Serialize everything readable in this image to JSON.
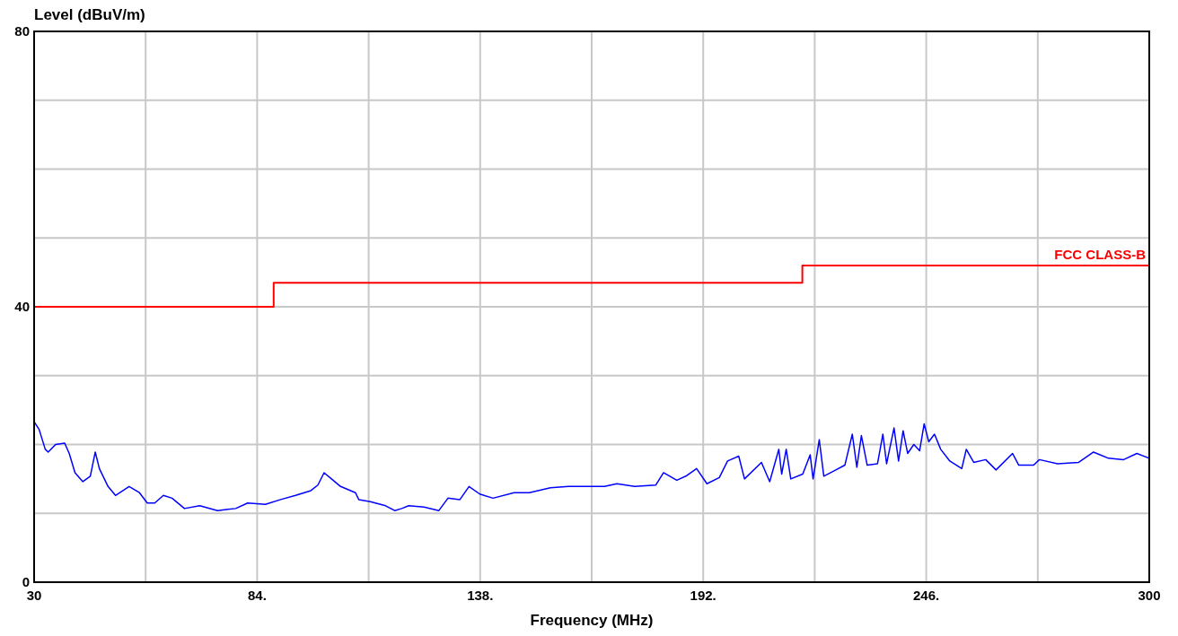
{
  "chart_data": {
    "type": "line",
    "xlabel": "Frequency (MHz)",
    "ylabel": "Level (dBuV/m)",
    "xlim": [
      30,
      300
    ],
    "ylim": [
      0,
      80
    ],
    "xticks": [
      30,
      {
        "value": 57,
        "label": null
      },
      {
        "value": 84,
        "label": "84."
      },
      {
        "value": 111,
        "label": null
      },
      {
        "value": 138,
        "label": "138."
      },
      {
        "value": 165,
        "label": null
      },
      {
        "value": 192,
        "label": "192."
      },
      {
        "value": 219,
        "label": null
      },
      {
        "value": 246,
        "label": "246."
      },
      {
        "value": 273,
        "label": null
      },
      300
    ],
    "yticks": [
      0,
      {
        "value": 10,
        "label": null
      },
      {
        "value": 20,
        "label": null
      },
      {
        "value": 30,
        "label": null
      },
      40,
      {
        "value": 50,
        "label": null
      },
      {
        "value": 60,
        "label": null
      },
      {
        "value": 70,
        "label": null
      },
      80
    ],
    "grid": true,
    "series": [
      {
        "color": "#0000ff",
        "x": [
          30,
          31.2,
          32.7,
          33.4,
          35.2,
          37.4,
          38.5,
          39.9,
          41.8,
          43.6,
          44.8,
          45.8,
          47.9,
          49.7,
          53,
          55.5,
          57.4,
          59.2,
          61.3,
          63.4,
          66.4,
          70.1,
          74.4,
          78.8,
          81.7,
          86,
          89.7,
          93.3,
          97,
          98.7,
          100.2,
          102,
          104.2,
          107.8,
          108.6,
          111.4,
          115.1,
          117.3,
          119,
          120.7,
          124.4,
          128,
          130.2,
          133.1,
          135.3,
          137.9,
          141.1,
          146.2,
          149.9,
          155,
          159.4,
          164.5,
          168.1,
          171.1,
          175.4,
          180.5,
          182.4,
          185.6,
          187.8,
          190.4,
          192.9,
          195.9,
          197.9,
          200.6,
          202,
          206.1,
          208.1,
          210.3,
          211,
          212.1,
          213.2,
          216.1,
          217.9,
          218.6,
          220.1,
          221.2,
          224.1,
          226.3,
          228.1,
          229.2,
          230.3,
          231.7,
          234.2,
          235.5,
          236.4,
          238.2,
          239.3,
          240.4,
          241.5,
          243,
          244.4,
          245.5,
          246.6,
          248,
          249.5,
          251.7,
          254.6,
          255.7,
          257.5,
          260.4,
          262.9,
          266.9,
          268.4,
          272,
          273.4,
          277.8,
          282.9,
          286.5,
          290.1,
          293.8,
          297,
          300
        ],
        "values": [
          23.3,
          22.2,
          19.3,
          18.9,
          20,
          20.2,
          18.7,
          15.9,
          14.6,
          15.4,
          18.9,
          16.5,
          13.9,
          12.6,
          13.9,
          13,
          11.5,
          11.5,
          12.6,
          12.2,
          10.7,
          11.1,
          10.4,
          10.7,
          11.5,
          11.3,
          12,
          12.6,
          13.3,
          14.1,
          15.9,
          15,
          13.9,
          13,
          12,
          11.7,
          11.1,
          10.4,
          10.7,
          11.1,
          10.9,
          10.4,
          12.2,
          12,
          13.9,
          12.8,
          12.2,
          13,
          13,
          13.7,
          13.9,
          13.9,
          13.9,
          14.3,
          13.9,
          14.1,
          15.9,
          14.8,
          15.4,
          16.5,
          14.3,
          15.2,
          17.6,
          18.3,
          15,
          17.4,
          14.6,
          19.3,
          15.7,
          19.3,
          15,
          15.7,
          18.5,
          15,
          20.7,
          15.4,
          16.3,
          17,
          21.5,
          16.7,
          21.3,
          17,
          17.2,
          21.5,
          17.2,
          22.4,
          17.6,
          22,
          18.7,
          20,
          19.1,
          23,
          20.4,
          21.5,
          19.3,
          17.6,
          16.5,
          19.3,
          17.4,
          17.8,
          16.3,
          18.7,
          17,
          17,
          17.8,
          17.2,
          17.4,
          18.9,
          18,
          17.8,
          18.7,
          18
        ]
      },
      {
        "type": "step",
        "name": "FCC CLASS-B",
        "color": "#ff0000",
        "x": [
          30,
          88,
          216,
          300
        ],
        "values": [
          40,
          43.5,
          46,
          46
        ]
      }
    ]
  }
}
